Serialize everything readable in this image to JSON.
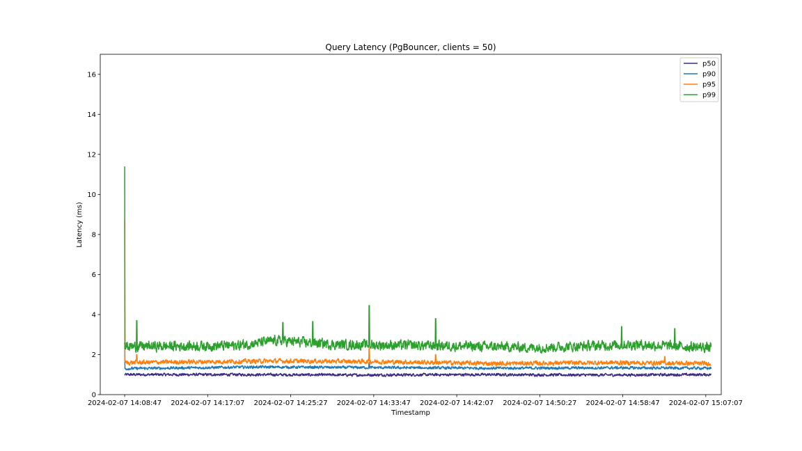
{
  "chart_data": {
    "type": "line",
    "title": "Query Latency (PgBouncer, clients = 50)",
    "xlabel": "Timestamp",
    "ylabel": "Latency (ms)",
    "ylim": [
      0,
      17
    ],
    "xlim": [
      "2024-02-07 14:06:20",
      "2024-02-07 15:08:40"
    ],
    "y_ticks": [
      0,
      2,
      4,
      6,
      8,
      10,
      12,
      14,
      16
    ],
    "x_ticks": [
      "2024-02-07 14:08:47",
      "2024-02-07 14:17:07",
      "2024-02-07 14:25:27",
      "2024-02-07 14:33:47",
      "2024-02-07 14:42:07",
      "2024-02-07 14:50:27",
      "2024-02-07 14:58:47",
      "2024-02-07 15:07:07"
    ],
    "grid": false,
    "legend_position": "upper right",
    "series": [
      {
        "name": "p50",
        "color": "#3b2c85",
        "baseline": 1.0,
        "noise": 0.06,
        "points": [
          [
            "2024-02-07 14:08:47",
            1.0
          ],
          [
            "2024-02-07 14:20:00",
            1.0
          ],
          [
            "2024-02-07 14:32:00",
            0.98
          ],
          [
            "2024-02-07 14:44:00",
            1.0
          ],
          [
            "2024-02-07 14:56:00",
            0.98
          ],
          [
            "2024-02-07 15:07:40",
            1.0
          ]
        ],
        "spikes": []
      },
      {
        "name": "p90",
        "color": "#1f77b4",
        "baseline": 1.35,
        "noise": 0.06,
        "points": [
          [
            "2024-02-07 14:08:47",
            1.3
          ],
          [
            "2024-02-07 14:22:00",
            1.38
          ],
          [
            "2024-02-07 14:34:00",
            1.35
          ],
          [
            "2024-02-07 14:46:00",
            1.32
          ],
          [
            "2024-02-07 14:58:00",
            1.34
          ],
          [
            "2024-02-07 15:07:40",
            1.32
          ]
        ],
        "spikes": [
          [
            "2024-02-07 14:08:47",
            2.6
          ],
          [
            "2024-02-07 14:33:20",
            1.6
          ]
        ]
      },
      {
        "name": "p95",
        "color": "#ff7f0e",
        "baseline": 1.6,
        "noise": 0.1,
        "points": [
          [
            "2024-02-07 14:08:47",
            1.6
          ],
          [
            "2024-02-07 14:24:00",
            1.68
          ],
          [
            "2024-02-07 14:34:00",
            1.65
          ],
          [
            "2024-02-07 14:46:00",
            1.55
          ],
          [
            "2024-02-07 14:58:00",
            1.6
          ],
          [
            "2024-02-07 15:07:40",
            1.55
          ]
        ],
        "spikes": [
          [
            "2024-02-07 14:08:47",
            8.8
          ],
          [
            "2024-02-07 14:10:00",
            2.0
          ],
          [
            "2024-02-07 14:33:20",
            2.3
          ],
          [
            "2024-02-07 14:40:00",
            2.0
          ],
          [
            "2024-02-07 15:03:00",
            1.9
          ]
        ]
      },
      {
        "name": "p99",
        "color": "#2ca02c",
        "baseline": 2.4,
        "noise": 0.22,
        "points": [
          [
            "2024-02-07 14:08:47",
            2.4
          ],
          [
            "2024-02-07 14:20:00",
            2.45
          ],
          [
            "2024-02-07 14:24:00",
            2.7
          ],
          [
            "2024-02-07 14:30:00",
            2.5
          ],
          [
            "2024-02-07 14:40:00",
            2.45
          ],
          [
            "2024-02-07 14:50:00",
            2.35
          ],
          [
            "2024-02-07 15:00:00",
            2.5
          ],
          [
            "2024-02-07 15:07:40",
            2.35
          ]
        ],
        "spikes": [
          [
            "2024-02-07 14:08:47",
            11.4
          ],
          [
            "2024-02-07 14:10:00",
            3.7
          ],
          [
            "2024-02-07 14:24:40",
            3.6
          ],
          [
            "2024-02-07 14:27:40",
            3.65
          ],
          [
            "2024-02-07 14:33:20",
            4.45
          ],
          [
            "2024-02-07 14:40:00",
            3.8
          ],
          [
            "2024-02-07 14:58:40",
            3.4
          ],
          [
            "2024-02-07 15:04:00",
            3.3
          ]
        ]
      }
    ]
  }
}
